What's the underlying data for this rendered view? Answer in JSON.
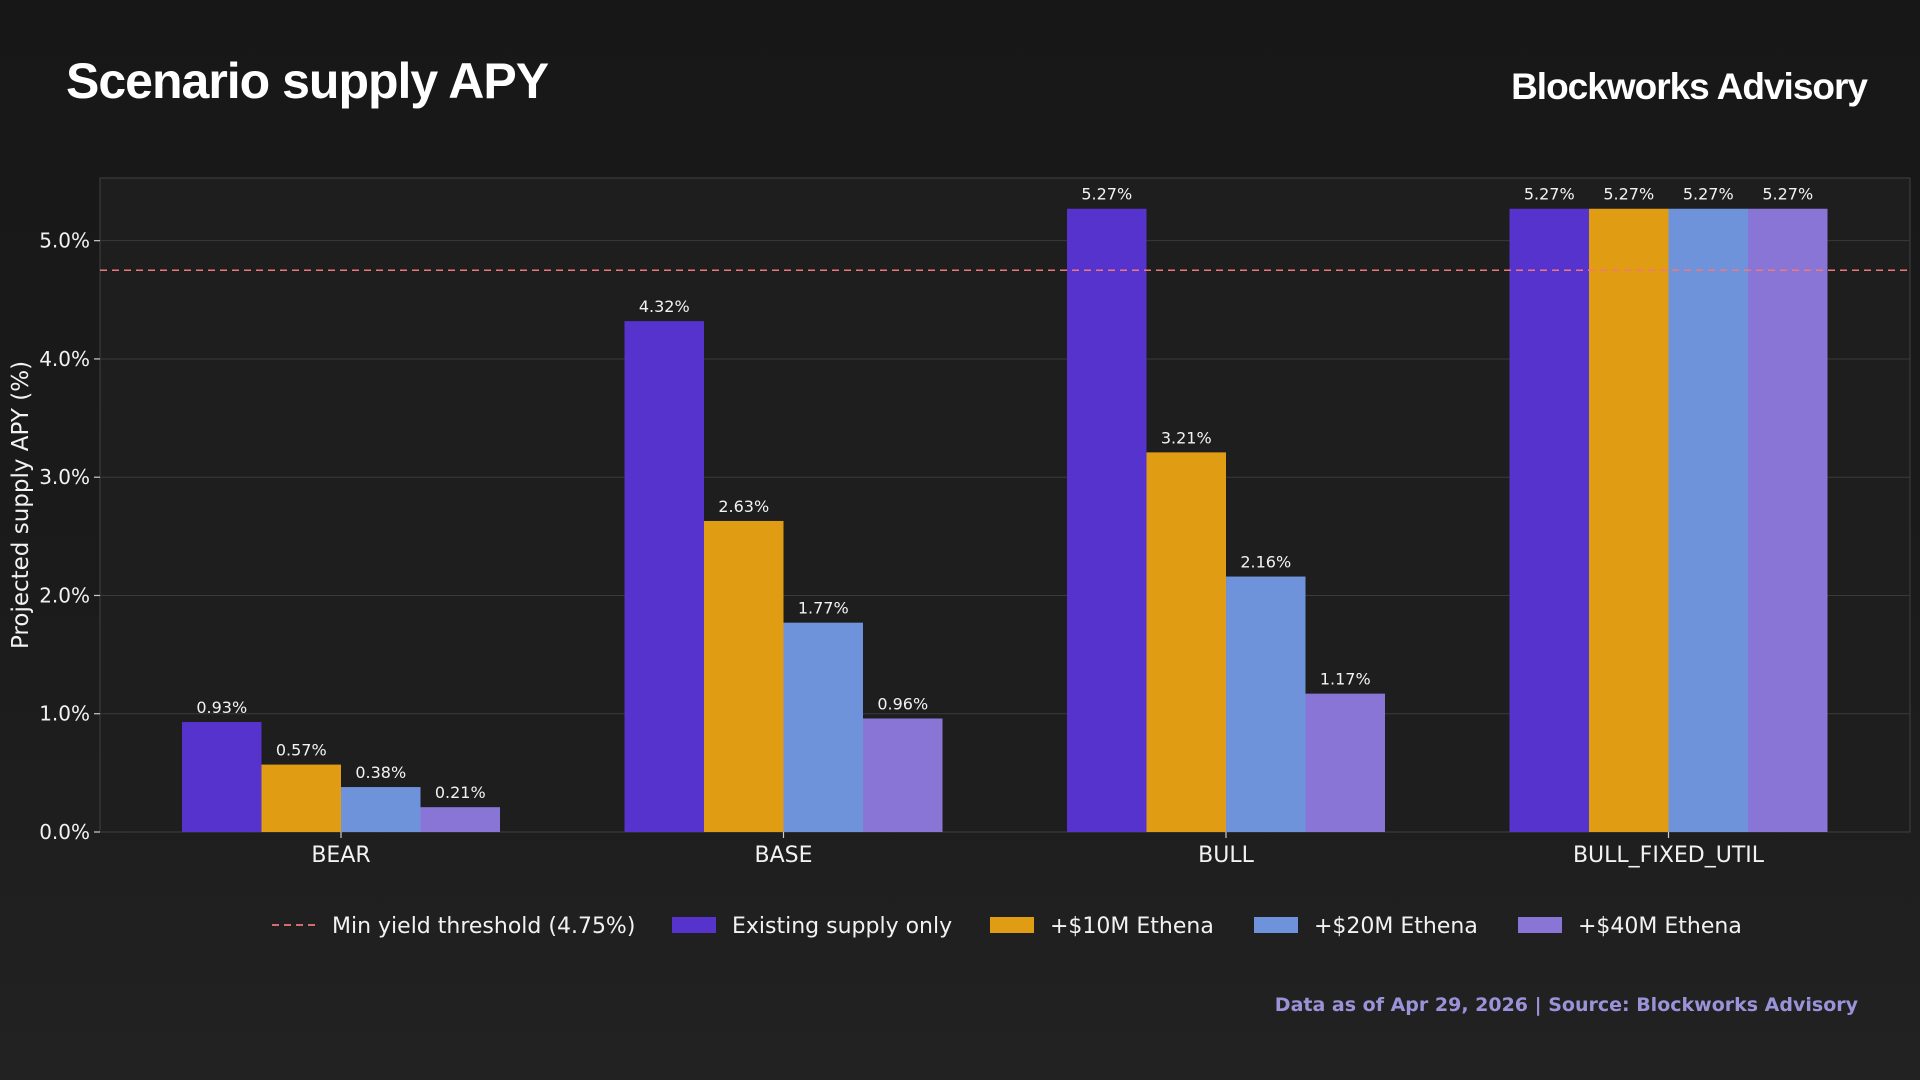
{
  "header": {
    "title": "Scenario supply APY",
    "brand": "Blockworks Advisory"
  },
  "footer": {
    "source": "Data as of Apr 29, 2026 | Source: Blockworks Advisory"
  },
  "chart_data": {
    "type": "bar",
    "title": "Scenario supply APY",
    "xlabel": "",
    "ylabel": "Projected supply APY (%)",
    "ylim": [
      0,
      5.53
    ],
    "yticks": [
      0,
      1,
      2,
      3,
      4,
      5
    ],
    "ytick_labels": [
      "0.0%",
      "1.0%",
      "2.0%",
      "3.0%",
      "4.0%",
      "5.0%"
    ],
    "categories": [
      "BEAR",
      "BASE",
      "BULL",
      "BULL_FIXED_UTIL"
    ],
    "series": [
      {
        "name": "Existing supply only",
        "color": "#5533cc",
        "values": [
          0.93,
          4.32,
          5.27,
          5.27
        ],
        "labels": [
          "0.93%",
          "4.32%",
          "5.27%",
          "5.27%"
        ]
      },
      {
        "name": "+$10M Ethena",
        "color": "#e09d14",
        "values": [
          0.57,
          2.63,
          3.21,
          5.27
        ],
        "labels": [
          "0.57%",
          "2.63%",
          "3.21%",
          "5.27%"
        ]
      },
      {
        "name": "+$20M Ethena",
        "color": "#6f93db",
        "values": [
          0.38,
          1.77,
          2.16,
          5.27
        ],
        "labels": [
          "0.38%",
          "1.77%",
          "2.16%",
          "5.27%"
        ]
      },
      {
        "name": "+$40M Ethena",
        "color": "#8875d6",
        "values": [
          0.21,
          0.96,
          1.17,
          5.27
        ],
        "labels": [
          "0.21%",
          "0.96%",
          "1.17%",
          "5.27%"
        ]
      }
    ],
    "threshold": {
      "name": "Min yield threshold (4.75%)",
      "value": 4.75,
      "color": "#f07878",
      "style": "dashed"
    },
    "grid": true,
    "legend_position": "bottom-center"
  }
}
